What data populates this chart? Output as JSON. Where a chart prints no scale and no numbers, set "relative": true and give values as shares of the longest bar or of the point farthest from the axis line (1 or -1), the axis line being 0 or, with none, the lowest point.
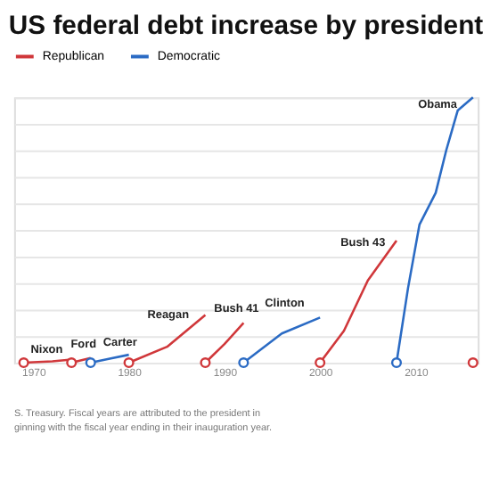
{
  "chart_data": {
    "type": "line",
    "title": "US federal debt increase by president",
    "relative": true,
    "xlim": [
      1968,
      2016.5
    ],
    "xticks": [
      1970,
      1980,
      1990,
      2000,
      2010
    ],
    "grid": "y",
    "legend": "top",
    "series": [
      {
        "name": "Republican",
        "color": "#d0373a",
        "x": [
          1969,
          1972,
          1974,
          1974,
          1976,
          1980,
          1984,
          1988,
          1988,
          1990,
          1992,
          2000,
          2002.5,
          2005,
          2008
        ],
        "values": [
          0,
          0.005,
          0.012,
          0,
          0.018,
          0,
          0.06,
          0.18,
          0,
          0.07,
          0.15,
          0,
          0.12,
          0.31,
          0.46
        ]
      },
      {
        "type": "scatter",
        "color": "#d0373a",
        "x": [
          2016
        ],
        "values": [
          0
        ]
      },
      {
        "name": "Democratic",
        "color": "#2b6bc4",
        "x": [
          1976,
          1978,
          1980,
          1992,
          1996,
          2000,
          2008,
          2009.2,
          2010.4,
          2012.1,
          2013.2,
          2014.4,
          2016
        ],
        "values": [
          0,
          0.015,
          0.03,
          0,
          0.11,
          0.17,
          0,
          0.28,
          0.52,
          0.64,
          0.8,
          0.95,
          1
        ]
      }
    ],
    "annotations": [
      {
        "text": "Nixon",
        "x": 1974,
        "y": 0.012
      },
      {
        "text": "Ford",
        "x": 1976,
        "y": 0.018
      },
      {
        "text": "Carter",
        "x": 1980,
        "y": 0.03
      },
      {
        "text": "Reagan",
        "x": 1988,
        "y": 0.18
      },
      {
        "text": "Bush 41",
        "x": 1992,
        "y": 0.15
      },
      {
        "text": "Clinton",
        "x": 2000,
        "y": 0.17
      },
      {
        "text": "Bush 43",
        "x": 2008,
        "y": 0.46
      },
      {
        "text": "Obama",
        "x": 2016,
        "y": 1
      },
      "S. Treasury. Fiscal years are attributed to the president in",
      "ginning with the fiscal year ending in their inauguration year."
    ]
  }
}
